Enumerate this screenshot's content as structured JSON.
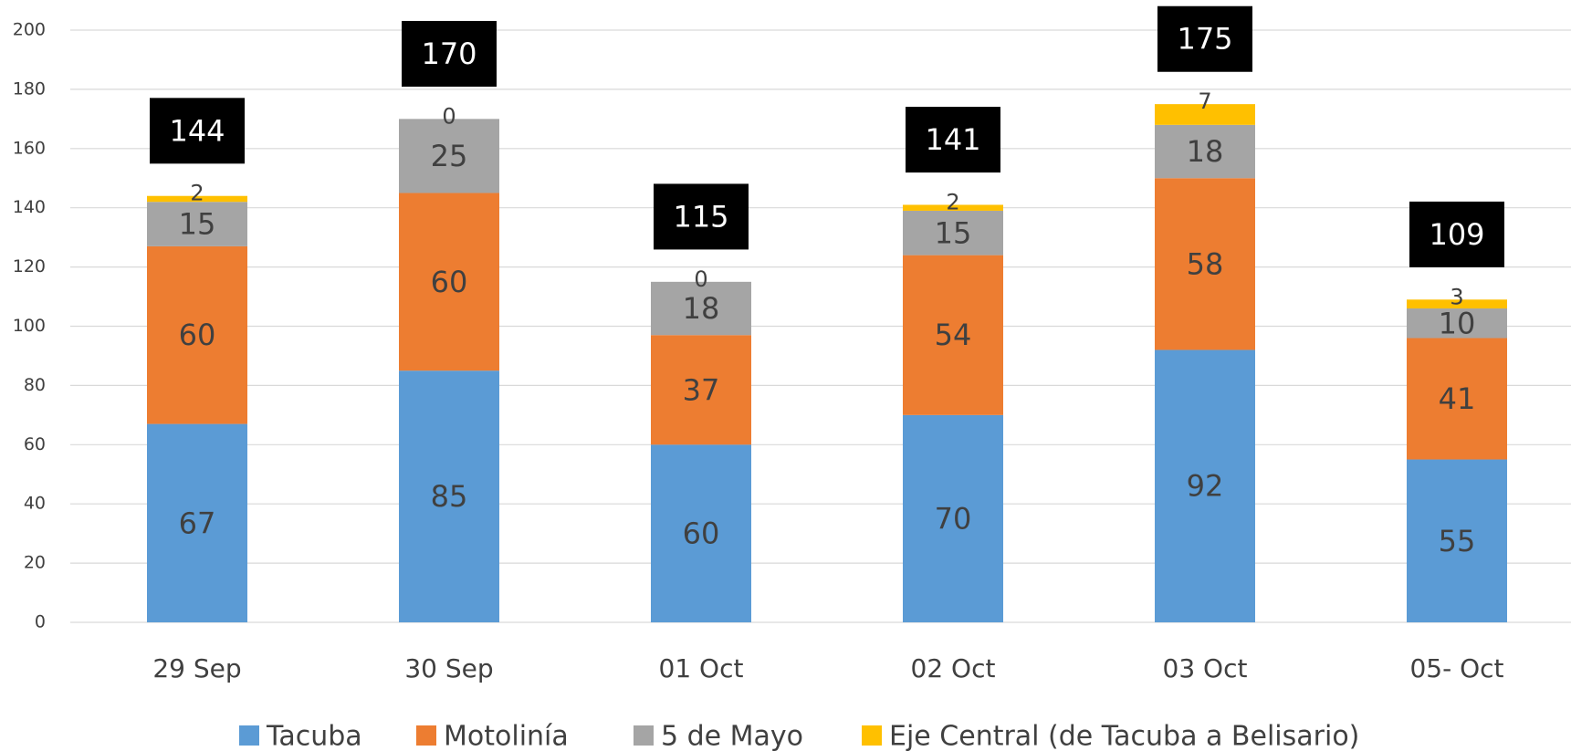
{
  "chart_data": {
    "type": "stacked_bar",
    "categories": [
      "29 Sep",
      "30 Sep",
      "01 Oct",
      "02 Oct",
      "03 Oct",
      "05- Oct"
    ],
    "series": [
      {
        "name": "Tacuba",
        "color": "#5b9bd5",
        "values": [
          67,
          85,
          60,
          70,
          92,
          55
        ]
      },
      {
        "name": "Motolinía",
        "color": "#ed7d31",
        "values": [
          60,
          60,
          37,
          54,
          58,
          41
        ]
      },
      {
        "name": "5 de Mayo",
        "color": "#a5a5a5",
        "values": [
          15,
          25,
          18,
          15,
          18,
          10
        ]
      },
      {
        "name": "Eje Central (de Tacuba a Belisario)",
        "color": "#ffc000",
        "values": [
          2,
          0,
          0,
          2,
          7,
          3
        ]
      }
    ],
    "totals": [
      144,
      170,
      115,
      141,
      175,
      109
    ],
    "ylim": [
      0,
      200
    ],
    "yticks": [
      0,
      20,
      40,
      60,
      80,
      100,
      120,
      140,
      160,
      180,
      200
    ],
    "grid": true,
    "legend": "bottom"
  }
}
